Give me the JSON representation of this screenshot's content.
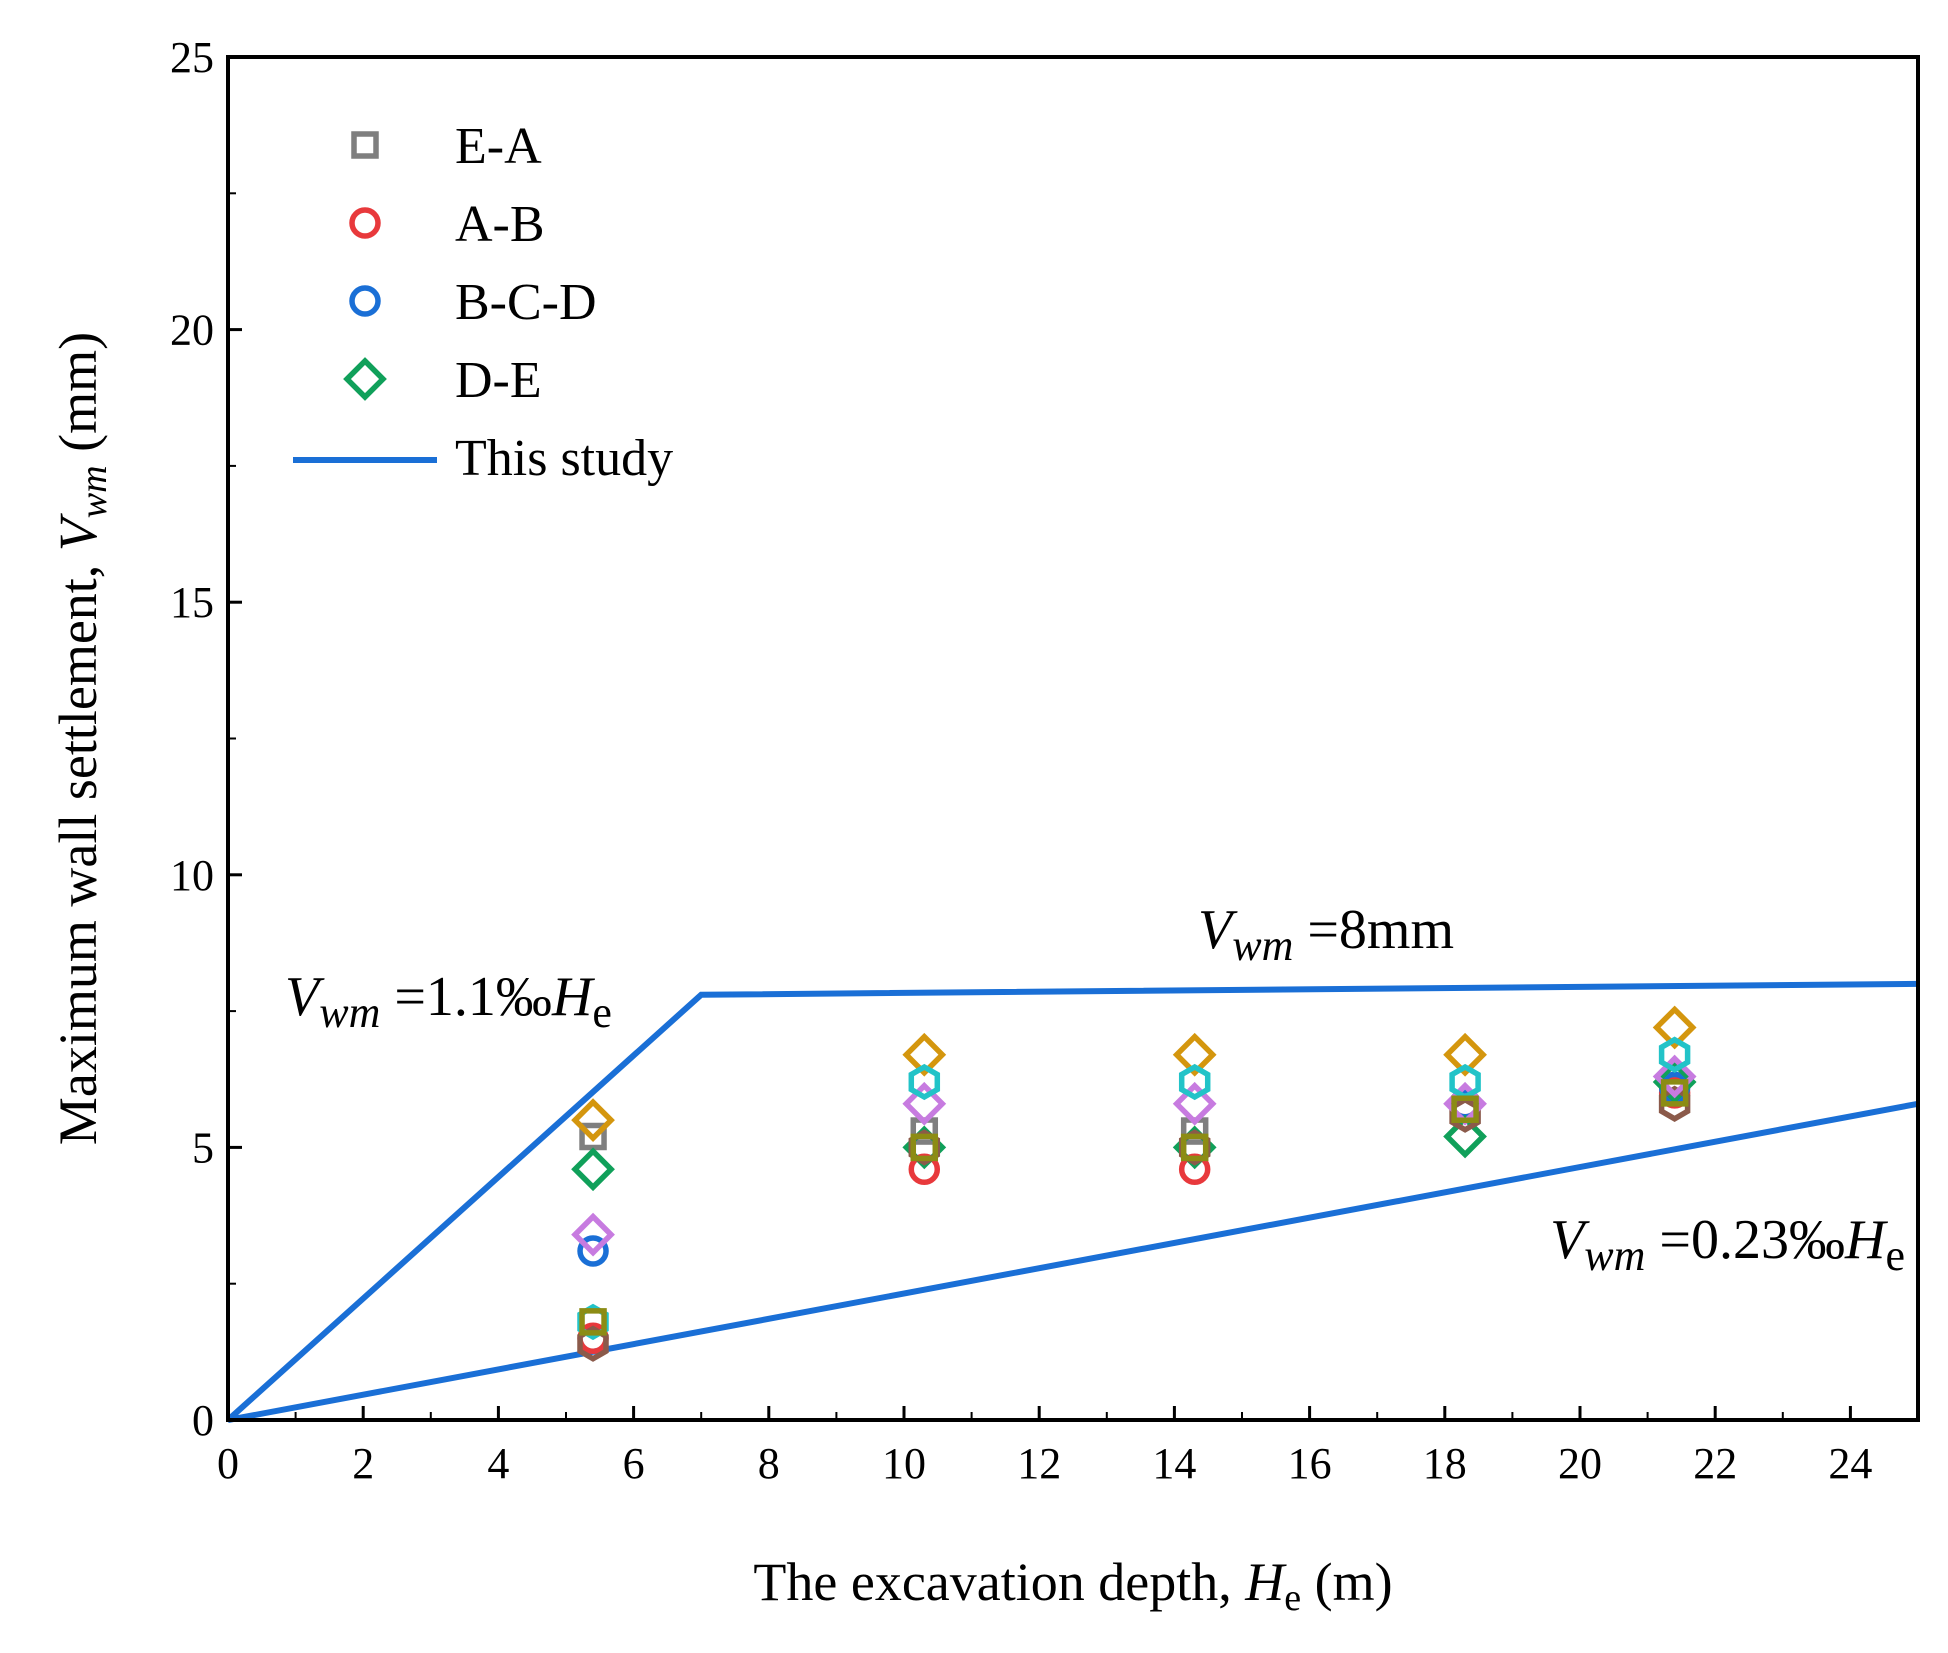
{
  "chart_data": {
    "type": "scatter",
    "title": "",
    "xlabel": {
      "main": "The excavation depth, ",
      "var": "H",
      "sub": "e",
      "unit": " (m)"
    },
    "ylabel": {
      "main": "Maximum wall settlement, ",
      "var": "V",
      "sub": "wm",
      "unit": " (mm)"
    },
    "xlim": [
      0,
      25
    ],
    "ylim": [
      0,
      25
    ],
    "xticks": [
      0,
      2,
      4,
      6,
      8,
      10,
      12,
      14,
      16,
      18,
      20,
      22,
      24
    ],
    "yticks": [
      0,
      5,
      10,
      15,
      20,
      25
    ],
    "legend_position": "top-left",
    "legend": [
      {
        "label": "E-A",
        "marker": "square",
        "color": "#7f7f7f"
      },
      {
        "label": "A-B",
        "marker": "circle",
        "color": "#e8393c"
      },
      {
        "label": "B-C-D",
        "marker": "circle",
        "color": "#1a6fd6"
      },
      {
        "label": "D-E",
        "marker": "diamond",
        "color": "#10a05a"
      },
      {
        "label": "This study",
        "marker": "line",
        "color": "#1a6fd6"
      }
    ],
    "series": [
      {
        "name": "E-A",
        "marker": "square",
        "color": "#7f7f7f",
        "x": [
          5.4,
          10.3,
          14.3,
          18.3,
          21.4
        ],
        "y": [
          5.2,
          5.3,
          5.3,
          5.7,
          6.1
        ]
      },
      {
        "name": "A-B",
        "marker": "circle",
        "color": "#e8393c",
        "x": [
          5.4,
          10.3,
          14.3,
          18.3,
          21.4
        ],
        "y": [
          1.5,
          4.6,
          4.6,
          5.8,
          6.0
        ]
      },
      {
        "name": "B-C-D",
        "marker": "circle",
        "color": "#1a6fd6",
        "x": [
          5.4,
          10.3,
          14.3,
          18.3,
          21.4
        ],
        "y": [
          3.1,
          5.0,
          5.0,
          5.8,
          6.1
        ]
      },
      {
        "name": "D-E",
        "marker": "diamond",
        "color": "#10a05a",
        "x": [
          5.4,
          10.3,
          14.3,
          18.3,
          21.4
        ],
        "y": [
          4.6,
          5.0,
          5.0,
          5.2,
          6.2
        ]
      },
      {
        "name": "unlabeled-brown",
        "marker": "hexagon",
        "color": "#8b5a4a",
        "x": [
          5.4,
          10.3,
          14.3,
          18.3,
          21.4
        ],
        "y": [
          1.4,
          5.0,
          5.0,
          5.6,
          5.8
        ]
      },
      {
        "name": "unlabeled-violet",
        "marker": "diamond",
        "color": "#c77be0",
        "x": [
          5.4,
          10.3,
          14.3,
          18.3,
          21.4
        ],
        "y": [
          3.4,
          5.8,
          5.8,
          5.8,
          6.3
        ]
      },
      {
        "name": "unlabeled-orange",
        "marker": "diamond",
        "color": "#d4960e",
        "x": [
          5.4,
          10.3,
          14.3,
          18.3,
          21.4
        ],
        "y": [
          5.5,
          6.7,
          6.7,
          6.7,
          7.2
        ]
      },
      {
        "name": "unlabeled-cyan",
        "marker": "hexagon",
        "color": "#22c3c8",
        "x": [
          5.4,
          10.3,
          14.3,
          18.3,
          21.4
        ],
        "y": [
          1.8,
          6.2,
          6.2,
          6.2,
          6.7
        ]
      },
      {
        "name": "unlabeled-olive",
        "marker": "square",
        "color": "#8c8c14",
        "x": [
          5.4,
          10.3,
          14.3,
          18.3,
          21.4
        ],
        "y": [
          1.8,
          5.0,
          5.0,
          5.7,
          6.0
        ]
      }
    ],
    "lines": [
      {
        "name": "This study upper bound",
        "color": "#1a6fd6",
        "x": [
          0,
          7,
          25
        ],
        "y": [
          0,
          7.8,
          8.0
        ]
      },
      {
        "name": "This study lower bound",
        "color": "#1a6fd6",
        "x": [
          0,
          25
        ],
        "y": [
          0,
          5.8
        ]
      }
    ],
    "annotations": [
      {
        "id": "upper",
        "var": "V",
        "sub": "wm",
        "eq": " =8mm",
        "tail": "",
        "tail_sub": ""
      },
      {
        "id": "slope",
        "var": "V",
        "sub": "wm",
        "eq": " =1.1‰",
        "tail": "H",
        "tail_sub": "e"
      },
      {
        "id": "lower",
        "var": "V",
        "sub": "wm",
        "eq": " =0.23‰",
        "tail": "H",
        "tail_sub": "e"
      }
    ]
  }
}
